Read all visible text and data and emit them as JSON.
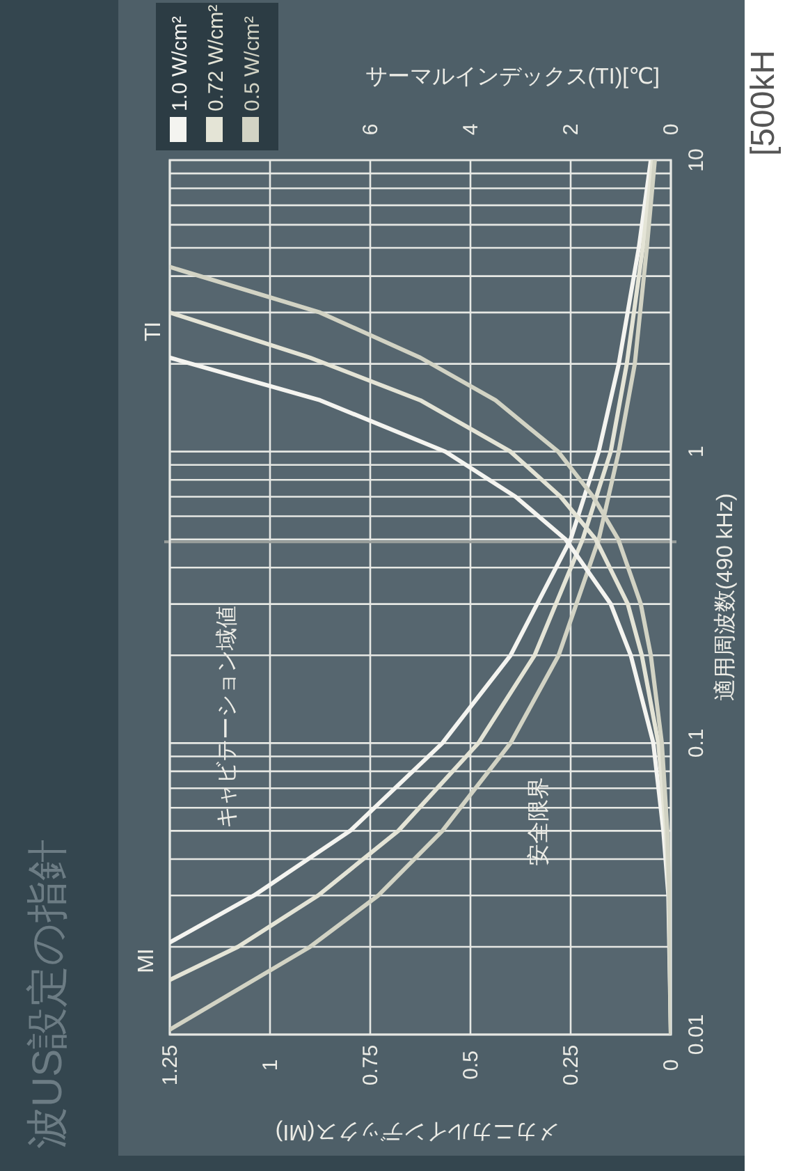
{
  "chart_data": {
    "type": "line",
    "title": "波US設定の指針",
    "xlabel": "メカニカルインデックス(MI)",
    "ylabel": "適用周波数(490 kHz)",
    "x2label": "サーマルインデックス(TI)[℃]",
    "log": "y",
    "ylim": [
      0.01,
      10
    ],
    "yticks": [
      0.01,
      0.1,
      1,
      10
    ],
    "xlim": [
      1.25,
      0
    ],
    "xticks": [
      1.25,
      1,
      0.75,
      0.5,
      0.25,
      0
    ],
    "x2lim": [
      10,
      0
    ],
    "x2ticks": [
      6,
      4,
      2,
      0
    ],
    "grid": true,
    "legend": "top left",
    "line_style": "solid",
    "ref_lines": [
      {
        "axis": "y",
        "value": 0.49,
        "color": "#9a9f9c"
      }
    ],
    "annotations": [
      "MI",
      "TI",
      "キャビテーション域値",
      "安全限界",
      "[500kH"
    ],
    "series": [
      {
        "name": "1.0 W/cm²",
        "color": "#f4f4f0",
        "x": [
          1.25,
          1.04,
          0.8,
          0.57,
          0.4,
          0.25,
          0.18,
          0.13,
          0.08,
          0.05
        ],
        "values": [
          0.0207,
          0.03,
          0.05,
          0.1,
          0.2,
          0.5,
          1,
          2,
          5,
          10
        ]
      },
      {
        "name": "0.72 W/cm²",
        "color": "#e4e4d6",
        "x": [
          1.25,
          1.08,
          0.88,
          0.68,
          0.48,
          0.34,
          0.22,
          0.15,
          0.11,
          0.07,
          0.045
        ],
        "values": [
          0.0154,
          0.02,
          0.03,
          0.05,
          0.1,
          0.2,
          0.5,
          1,
          2,
          5,
          10
        ]
      },
      {
        "name": "0.5 W/cm²",
        "color": "#d2d3c4",
        "x": [
          1.25,
          0.9,
          0.73,
          0.57,
          0.4,
          0.28,
          0.18,
          0.13,
          0.09,
          0.06,
          0.04
        ],
        "values": [
          0.0104,
          0.02,
          0.03,
          0.05,
          0.1,
          0.2,
          0.5,
          1,
          2,
          5,
          10
        ]
      },
      {
        "color": "#f4f4f0",
        "axis": "x2",
        "x": [
          0,
          0.05,
          0.15,
          0.35,
          0.8,
          1.2,
          2.1,
          3.1,
          4.5,
          7,
          10
        ],
        "values": [
          0.01,
          0.03,
          0.05,
          0.1,
          0.2,
          0.3,
          0.5,
          0.7,
          1,
          1.5,
          2.1
        ]
      },
      {
        "color": "#e4e4d6",
        "axis": "x2",
        "x": [
          0,
          0.04,
          0.1,
          0.25,
          0.58,
          0.86,
          1.5,
          2.2,
          3.2,
          5,
          7.2,
          10
        ],
        "values": [
          0.01,
          0.03,
          0.05,
          0.1,
          0.2,
          0.3,
          0.5,
          0.7,
          1,
          1.5,
          2.1,
          3
        ]
      },
      {
        "color": "#d2d3c4",
        "axis": "x2",
        "x": [
          0,
          0.03,
          0.07,
          0.18,
          0.4,
          0.6,
          1.05,
          1.55,
          2.25,
          3.5,
          5,
          7,
          10
        ],
        "values": [
          0.01,
          0.03,
          0.05,
          0.1,
          0.2,
          0.3,
          0.5,
          0.7,
          1,
          1.5,
          2.1,
          3,
          4.3
        ]
      }
    ]
  }
}
